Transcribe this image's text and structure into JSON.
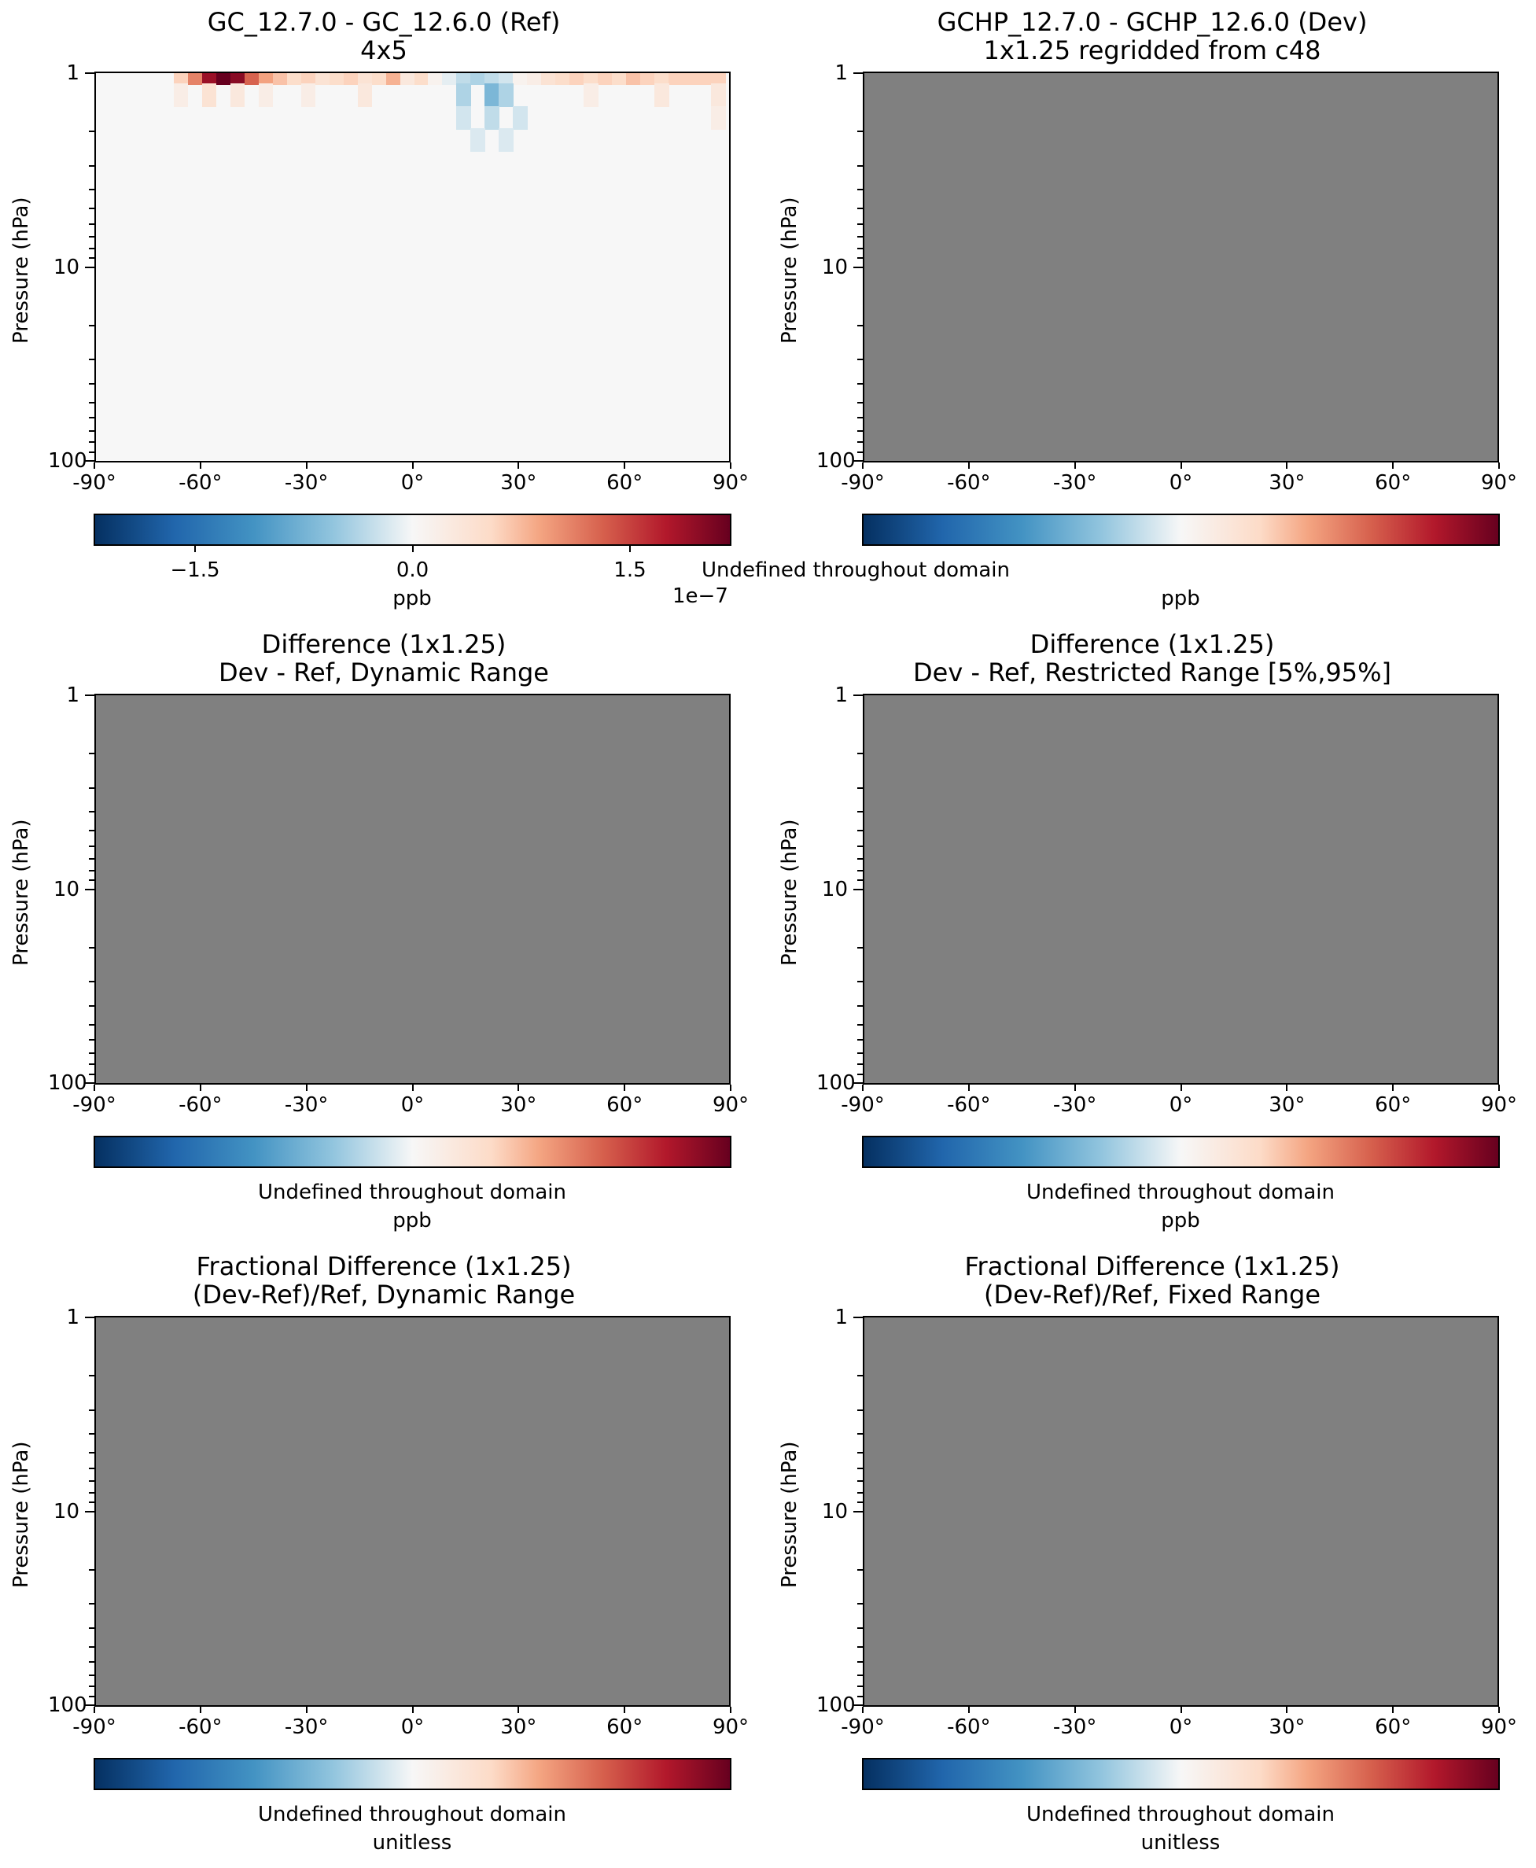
{
  "chart_data": [
    {
      "type": "heatmap",
      "title": "GC_12.7.0 - GC_12.6.0 (Ref)",
      "subtitle": "4x5",
      "ylabel": "Pressure (hPa)",
      "yscale": "log",
      "ylim": [
        100,
        1
      ],
      "yticks": [
        "1",
        "10",
        "100"
      ],
      "xlim": [
        -90,
        90
      ],
      "xticks": [
        "-90°",
        "-60°",
        "-30°",
        "0°",
        "30°",
        "60°",
        "90°"
      ],
      "colormap": "RdBu_r",
      "colorbar_label": "ppb",
      "colorbar_ticks": [
        "−1.5",
        "0.0",
        "1.5"
      ],
      "colorbar_ticks_values": [
        -1.5e-07,
        0,
        1.5e-07
      ],
      "colorbar_range": [
        -2.2e-07,
        2.2e-07
      ],
      "colorbar_offset": "1e−7",
      "cells": [
        {
          "lat": -66,
          "p": 1,
          "v": 6e-08
        },
        {
          "lat": -62,
          "p": 1,
          "v": 1.1e-07
        },
        {
          "lat": -58,
          "p": 1,
          "v": 1.9e-07
        },
        {
          "lat": -54,
          "p": 1,
          "v": 2.2e-07
        },
        {
          "lat": -50,
          "p": 1,
          "v": 2e-07
        },
        {
          "lat": -46,
          "p": 1,
          "v": 1.3e-07
        },
        {
          "lat": -42,
          "p": 1,
          "v": 9e-08
        },
        {
          "lat": -38,
          "p": 1,
          "v": 7e-08
        },
        {
          "lat": -34,
          "p": 1,
          "v": 5e-08
        },
        {
          "lat": -30,
          "p": 1,
          "v": 6e-08
        },
        {
          "lat": -26,
          "p": 1,
          "v": 4e-08
        },
        {
          "lat": -22,
          "p": 1,
          "v": 5e-08
        },
        {
          "lat": -18,
          "p": 1,
          "v": 6e-08
        },
        {
          "lat": -14,
          "p": 1,
          "v": 4e-08
        },
        {
          "lat": -10,
          "p": 1,
          "v": 5e-08
        },
        {
          "lat": -6,
          "p": 1,
          "v": 8e-08
        },
        {
          "lat": -2,
          "p": 1,
          "v": 3e-08
        },
        {
          "lat": 2,
          "p": 1,
          "v": 5e-08
        },
        {
          "lat": 6,
          "p": 1,
          "v": 1e-08
        },
        {
          "lat": 10,
          "p": 1,
          "v": -1e-08
        },
        {
          "lat": 14,
          "p": 1,
          "v": -3e-08
        },
        {
          "lat": 18,
          "p": 1,
          "v": -4e-08
        },
        {
          "lat": 22,
          "p": 1,
          "v": -3e-08
        },
        {
          "lat": 26,
          "p": 1,
          "v": -2e-08
        },
        {
          "lat": 30,
          "p": 1,
          "v": 1e-08
        },
        {
          "lat": 34,
          "p": 1,
          "v": 2e-08
        },
        {
          "lat": 38,
          "p": 1,
          "v": 4e-08
        },
        {
          "lat": 42,
          "p": 1,
          "v": 5e-08
        },
        {
          "lat": 46,
          "p": 1,
          "v": 6e-08
        },
        {
          "lat": 50,
          "p": 1,
          "v": 5e-08
        },
        {
          "lat": 54,
          "p": 1,
          "v": 6e-08
        },
        {
          "lat": 58,
          "p": 1,
          "v": 5e-08
        },
        {
          "lat": 62,
          "p": 1,
          "v": 7e-08
        },
        {
          "lat": 66,
          "p": 1,
          "v": 6e-08
        },
        {
          "lat": 70,
          "p": 1,
          "v": 5e-08
        },
        {
          "lat": 74,
          "p": 1,
          "v": 6e-08
        },
        {
          "lat": 78,
          "p": 1,
          "v": 6e-08
        },
        {
          "lat": 82,
          "p": 1,
          "v": 6e-08
        },
        {
          "lat": 86,
          "p": 1,
          "v": 6e-08
        },
        {
          "lat": -66,
          "p": 1.3,
          "v": 2e-08
        },
        {
          "lat": -58,
          "p": 1.3,
          "v": 4e-08
        },
        {
          "lat": -50,
          "p": 1.3,
          "v": 3e-08
        },
        {
          "lat": -42,
          "p": 1.3,
          "v": 2e-08
        },
        {
          "lat": -30,
          "p": 1.3,
          "v": 2e-08
        },
        {
          "lat": -14,
          "p": 1.3,
          "v": 3e-08
        },
        {
          "lat": 14,
          "p": 1.3,
          "v": -4e-08
        },
        {
          "lat": 22,
          "p": 1.3,
          "v": -7e-08
        },
        {
          "lat": 26,
          "p": 1.3,
          "v": -4e-08
        },
        {
          "lat": 50,
          "p": 1.3,
          "v": 2e-08
        },
        {
          "lat": 70,
          "p": 1.3,
          "v": 3e-08
        },
        {
          "lat": 86,
          "p": 1.3,
          "v": 3e-08
        },
        {
          "lat": 14,
          "p": 1.7,
          "v": -2e-08
        },
        {
          "lat": 22,
          "p": 1.7,
          "v": -3e-08
        },
        {
          "lat": 30,
          "p": 1.7,
          "v": -2e-08
        },
        {
          "lat": 86,
          "p": 1.7,
          "v": 2e-08
        },
        {
          "lat": 18,
          "p": 2.2,
          "v": -1.5e-08
        },
        {
          "lat": 26,
          "p": 2.2,
          "v": -1.5e-08
        }
      ]
    },
    {
      "type": "heatmap",
      "title": "GCHP_12.7.0 - GCHP_12.6.0 (Dev)",
      "subtitle": "1x1.25 regridded from c48",
      "ylabel": "Pressure (hPa)",
      "yscale": "log",
      "ylim": [
        100,
        1
      ],
      "yticks": [
        "1",
        "10",
        "100"
      ],
      "xlim": [
        -90,
        90
      ],
      "xticks": [
        "-90°",
        "-60°",
        "-30°",
        "0°",
        "30°",
        "60°",
        "90°"
      ],
      "colormap": "RdBu_r",
      "colorbar_label": "ppb",
      "colorbar_note": "Undefined throughout domain",
      "fill": "#808080"
    },
    {
      "type": "heatmap",
      "title": "Difference (1x1.25)",
      "subtitle": "Dev - Ref, Dynamic Range",
      "ylabel": "Pressure (hPa)",
      "yscale": "log",
      "ylim": [
        100,
        1
      ],
      "yticks": [
        "1",
        "10",
        "100"
      ],
      "xlim": [
        -90,
        90
      ],
      "xticks": [
        "-90°",
        "-60°",
        "-30°",
        "0°",
        "30°",
        "60°",
        "90°"
      ],
      "colormap": "RdBu_r",
      "colorbar_label": "ppb",
      "colorbar_note": "Undefined throughout domain",
      "fill": "#808080"
    },
    {
      "type": "heatmap",
      "title": "Difference (1x1.25)",
      "subtitle": "Dev - Ref, Restricted Range [5%,95%]",
      "ylabel": "Pressure (hPa)",
      "yscale": "log",
      "ylim": [
        100,
        1
      ],
      "yticks": [
        "1",
        "10",
        "100"
      ],
      "xlim": [
        -90,
        90
      ],
      "xticks": [
        "-90°",
        "-60°",
        "-30°",
        "0°",
        "30°",
        "60°",
        "90°"
      ],
      "colormap": "RdBu_r",
      "colorbar_label": "ppb",
      "colorbar_note": "Undefined throughout domain",
      "fill": "#808080"
    },
    {
      "type": "heatmap",
      "title": "Fractional Difference (1x1.25)",
      "subtitle": "(Dev-Ref)/Ref, Dynamic Range",
      "ylabel": "Pressure (hPa)",
      "yscale": "log",
      "ylim": [
        100,
        1
      ],
      "yticks": [
        "1",
        "10",
        "100"
      ],
      "xlim": [
        -90,
        90
      ],
      "xticks": [
        "-90°",
        "-60°",
        "-30°",
        "0°",
        "30°",
        "60°",
        "90°"
      ],
      "colormap": "RdBu_r",
      "colorbar_label": "unitless",
      "colorbar_note": "Undefined throughout domain",
      "fill": "#808080"
    },
    {
      "type": "heatmap",
      "title": "Fractional Difference (1x1.25)",
      "subtitle": "(Dev-Ref)/Ref, Fixed Range",
      "ylabel": "Pressure (hPa)",
      "yscale": "log",
      "ylim": [
        100,
        1
      ],
      "yticks": [
        "1",
        "10",
        "100"
      ],
      "xlim": [
        -90,
        90
      ],
      "xticks": [
        "-90°",
        "-60°",
        "-30°",
        "0°",
        "30°",
        "60°",
        "90°"
      ],
      "colormap": "RdBu_r",
      "colorbar_label": "unitless",
      "colorbar_note": "Undefined throughout domain",
      "fill": "#808080"
    }
  ]
}
